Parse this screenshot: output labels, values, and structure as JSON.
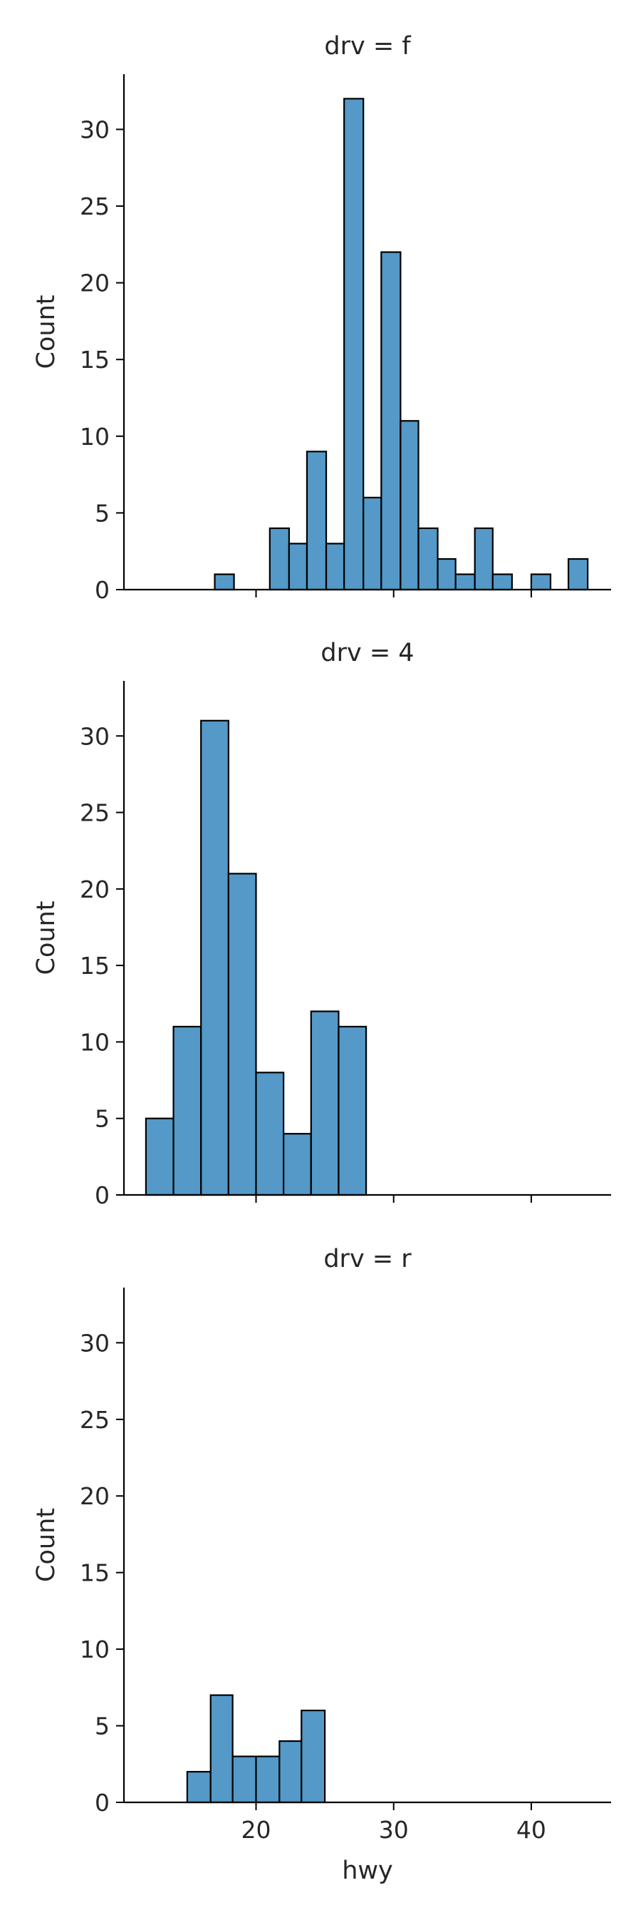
{
  "chart_data": {
    "type": "bar",
    "subtype": "histogram-facets",
    "xlabel": "hwy",
    "ylabel": "Count",
    "xlim": [
      10.4,
      45.8
    ],
    "ylim": [
      0,
      33.6
    ],
    "xticks": [
      20,
      30,
      40
    ],
    "yticks": [
      0,
      5,
      10,
      15,
      20,
      25,
      30
    ],
    "grid": false,
    "bar_color": "#5499c7",
    "edge_color": "#000000",
    "panels": [
      {
        "title": "drv = f",
        "bins": [
          {
            "x0": 17.0,
            "x1": 18.4,
            "count": 1
          },
          {
            "x0": 21.0,
            "x1": 22.4,
            "count": 4
          },
          {
            "x0": 22.4,
            "x1": 23.7,
            "count": 3
          },
          {
            "x0": 23.7,
            "x1": 25.1,
            "count": 9
          },
          {
            "x0": 25.1,
            "x1": 26.4,
            "count": 3
          },
          {
            "x0": 26.4,
            "x1": 27.8,
            "count": 32
          },
          {
            "x0": 27.8,
            "x1": 29.1,
            "count": 6
          },
          {
            "x0": 29.1,
            "x1": 30.5,
            "count": 22
          },
          {
            "x0": 30.5,
            "x1": 31.8,
            "count": 11
          },
          {
            "x0": 31.8,
            "x1": 33.2,
            "count": 4
          },
          {
            "x0": 33.2,
            "x1": 34.5,
            "count": 2
          },
          {
            "x0": 34.5,
            "x1": 35.9,
            "count": 1
          },
          {
            "x0": 35.9,
            "x1": 37.2,
            "count": 4
          },
          {
            "x0": 37.2,
            "x1": 38.6,
            "count": 1
          },
          {
            "x0": 40.0,
            "x1": 41.4,
            "count": 1
          },
          {
            "x0": 42.7,
            "x1": 44.1,
            "count": 2
          }
        ]
      },
      {
        "title": "drv = 4",
        "bins": [
          {
            "x0": 12.0,
            "x1": 14.0,
            "count": 5
          },
          {
            "x0": 14.0,
            "x1": 16.0,
            "count": 11
          },
          {
            "x0": 16.0,
            "x1": 18.0,
            "count": 31
          },
          {
            "x0": 18.0,
            "x1": 20.0,
            "count": 21
          },
          {
            "x0": 20.0,
            "x1": 22.0,
            "count": 8
          },
          {
            "x0": 22.0,
            "x1": 24.0,
            "count": 4
          },
          {
            "x0": 24.0,
            "x1": 26.0,
            "count": 12
          },
          {
            "x0": 26.0,
            "x1": 28.0,
            "count": 11
          }
        ]
      },
      {
        "title": "drv = r",
        "bins": [
          {
            "x0": 15.0,
            "x1": 16.7,
            "count": 2
          },
          {
            "x0": 16.7,
            "x1": 18.3,
            "count": 7
          },
          {
            "x0": 18.3,
            "x1": 20.0,
            "count": 3
          },
          {
            "x0": 20.0,
            "x1": 21.7,
            "count": 3
          },
          {
            "x0": 21.7,
            "x1": 23.3,
            "count": 4
          },
          {
            "x0": 23.3,
            "x1": 25.0,
            "count": 6
          }
        ]
      }
    ]
  }
}
